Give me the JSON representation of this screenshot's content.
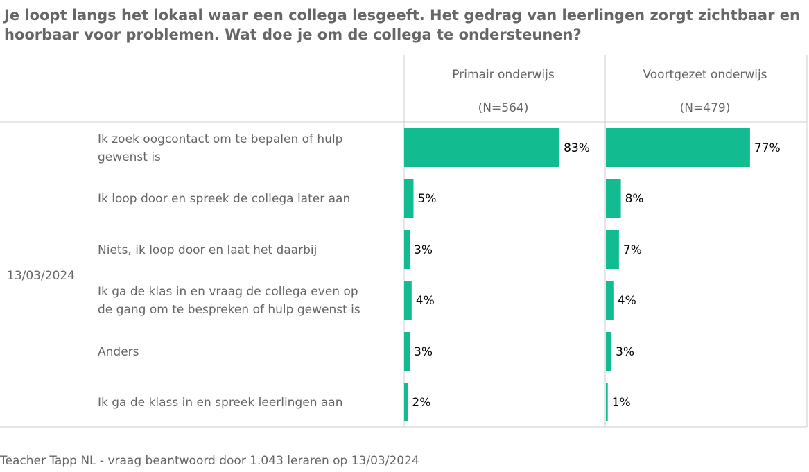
{
  "title": "Je loopt langs het lokaal waar een collega lesgeeft. Het gedrag van leerlingen zorgt zichtbaar en hoorbaar voor problemen. Wat doe je om de collega te ondersteunen?",
  "footer": "Teacher Tapp NL - vraag beantwoord door 1.043 leraren op 13/03/2024",
  "colors": {
    "bar": "#12bc90",
    "text": "#666666",
    "value_text": "#000000",
    "grid": "#cccccc"
  },
  "chart_data": {
    "type": "bar",
    "orientation": "horizontal",
    "row_group_label": "13/03/2024",
    "categories": [
      [
        "Ik zoek oogcontact om te bepalen of hulp",
        "gewenst is"
      ],
      [
        "Ik loop door en spreek de collega later aan"
      ],
      [
        "Niets, ik loop door en laat het daarbij"
      ],
      [
        "Ik ga de  klas in en vraag de collega even op",
        "de gang om te bespreken of hulp gewenst is"
      ],
      [
        "Anders"
      ],
      [
        "Ik ga de klass in en spreek leerlingen aan"
      ]
    ],
    "panels": [
      {
        "name": "Primair onderwijs",
        "n": "(N=564)",
        "values": [
          83,
          5,
          3,
          4,
          3,
          2
        ]
      },
      {
        "name": "Voortgezet onderwijs",
        "n": "(N=479)",
        "values": [
          77,
          8,
          7,
          4,
          3,
          1
        ]
      }
    ],
    "value_suffix": "%",
    "xlim": [
      0,
      100
    ]
  }
}
